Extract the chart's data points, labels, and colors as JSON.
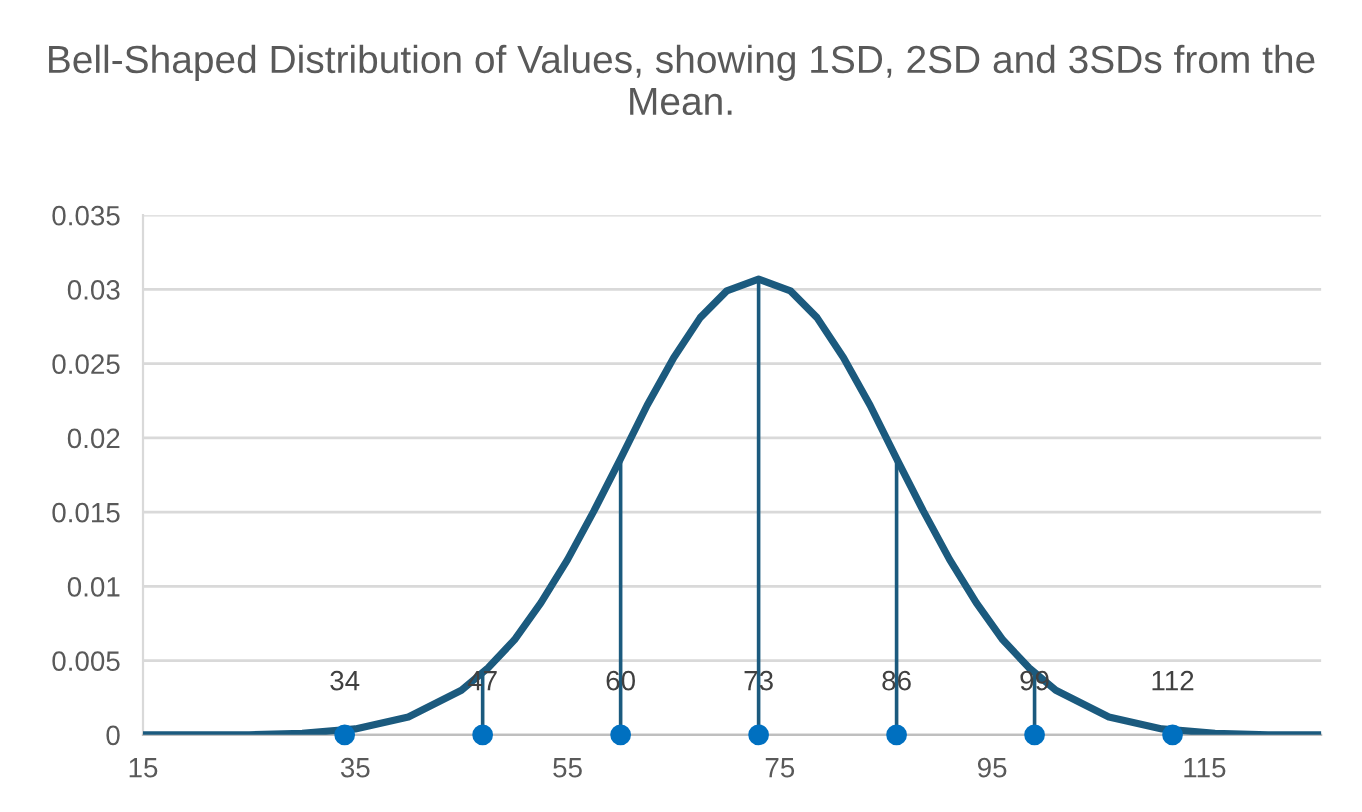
{
  "chart_data": {
    "type": "line",
    "title": "Bell-Shaped Distribution of Values, showing 1SD, 2SD and 3SDs from the Mean.",
    "xlim": [
      15,
      126
    ],
    "xticks": [
      15,
      35,
      55,
      75,
      95,
      115
    ],
    "ylim": [
      0,
      0.035
    ],
    "yticks": [
      0,
      0.005,
      0.01,
      0.015,
      0.02,
      0.025,
      0.03,
      0.035
    ],
    "grid": "y",
    "legend": false,
    "annotations": [
      {
        "text": "34",
        "x": 34,
        "y": 0
      },
      {
        "text": "47",
        "x": 47,
        "y": 0
      },
      {
        "text": "60",
        "x": 60,
        "y": 0
      },
      {
        "text": "73",
        "x": 73,
        "y": 0
      },
      {
        "text": "86",
        "x": 86,
        "y": 0
      },
      {
        "text": "99",
        "x": 99,
        "y": 0
      },
      {
        "text": "112",
        "x": 112,
        "y": 0
      }
    ],
    "series": [
      {
        "color": "#1b5a7e",
        "marker": "none",
        "line_style": "solid",
        "x": [
          15,
          20,
          25,
          30,
          35,
          40,
          45,
          47.5,
          50,
          52.5,
          55,
          57.5,
          60,
          62.5,
          65,
          67.5,
          70,
          73,
          76,
          78.5,
          81,
          83.5,
          86,
          88.5,
          91,
          93.5,
          96,
          98.5,
          101,
          106,
          111,
          116,
          121,
          126
        ],
        "values": [
          0.0,
          0.0,
          0.0,
          0.0001,
          0.0004,
          0.0012,
          0.003,
          0.0045,
          0.0064,
          0.0089,
          0.0118,
          0.0151,
          0.0186,
          0.0222,
          0.0254,
          0.0281,
          0.0299,
          0.0307,
          0.0299,
          0.0281,
          0.0254,
          0.0222,
          0.0186,
          0.0151,
          0.0118,
          0.0089,
          0.0064,
          0.0045,
          0.003,
          0.0012,
          0.0004,
          0.0001,
          0.0,
          0.0
        ]
      },
      {
        "type": "scatter",
        "color": "#0070c0",
        "marker": "circle",
        "x": [
          34,
          47,
          60,
          73,
          86,
          99,
          112
        ],
        "values": [
          0,
          0,
          0,
          0,
          0,
          0,
          0
        ],
        "errors": [
          null,
          [
            0,
            0.0042
          ],
          [
            0,
            0.0186
          ],
          [
            0,
            0.0307
          ],
          [
            0,
            0.0186
          ],
          [
            0,
            0.0042
          ],
          null
        ]
      }
    ]
  }
}
